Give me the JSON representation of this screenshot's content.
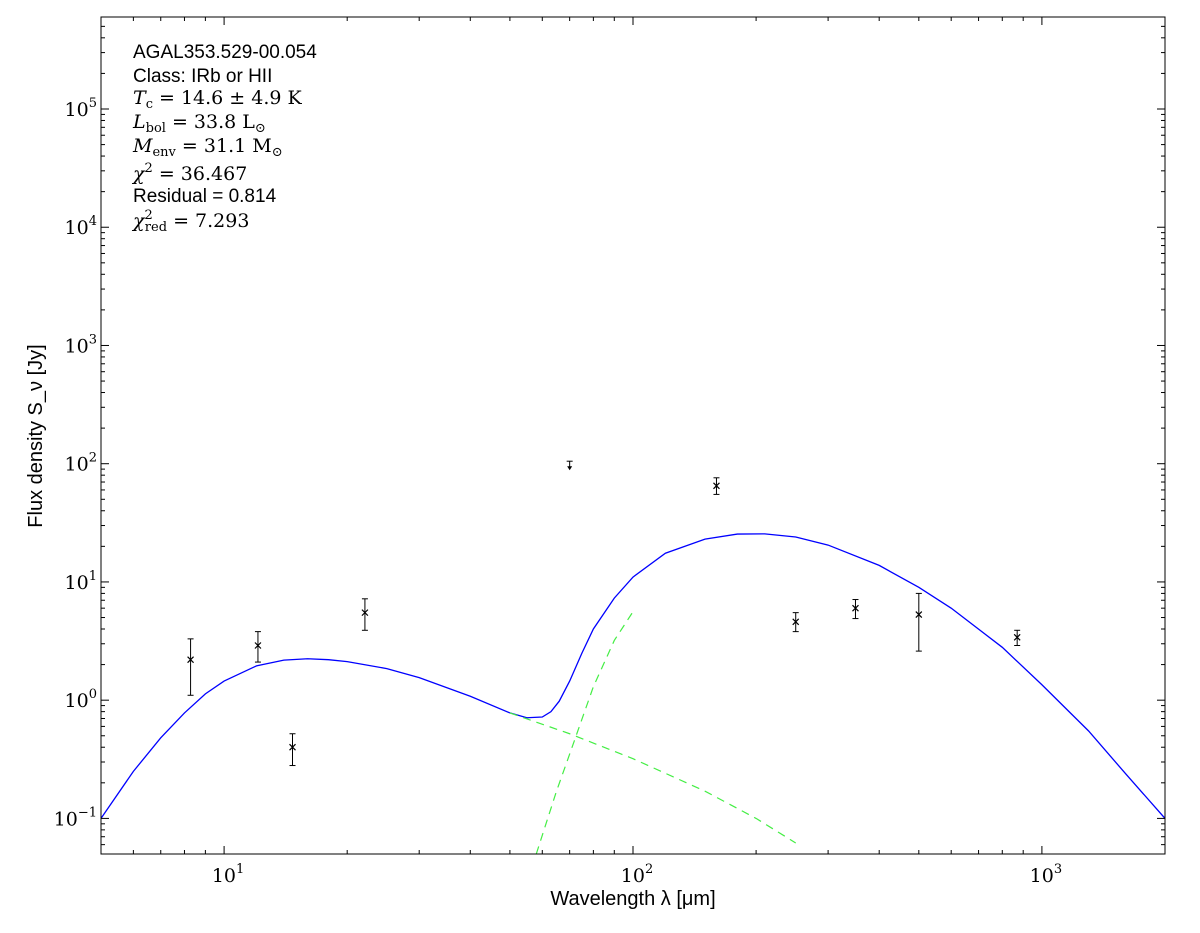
{
  "chart_data": {
    "type": "scatter",
    "title": "",
    "xlabel": "Wavelength λ [μm]",
    "ylabel": "Flux density S_ν [Jy]",
    "xscale": "log",
    "yscale": "log",
    "xlim": [
      5,
      2000
    ],
    "ylim": [
      0.05,
      600000
    ],
    "grid": false,
    "x_ticks": [
      {
        "value": 10,
        "base": "10",
        "exp": "1"
      },
      {
        "value": 100,
        "base": "10",
        "exp": "2"
      },
      {
        "value": 1000,
        "base": "10",
        "exp": "3"
      }
    ],
    "y_ticks": [
      {
        "value": 0.1,
        "base": "10",
        "exp": "−1"
      },
      {
        "value": 1,
        "base": "10",
        "exp": "0"
      },
      {
        "value": 10,
        "base": "10",
        "exp": "1"
      },
      {
        "value": 100,
        "base": "10",
        "exp": "2"
      },
      {
        "value": 1000,
        "base": "10",
        "exp": "3"
      },
      {
        "value": 10000,
        "base": "10",
        "exp": "4"
      },
      {
        "value": 100000,
        "base": "10",
        "exp": "5"
      }
    ],
    "annotations": {
      "source": "AGAL353.529-00.054",
      "class_label": "Class: IRb or HII",
      "tc": {
        "sym": "T",
        "sub": "c",
        "text": " = 14.6 ± 4.9 K"
      },
      "lbol": {
        "sym": "L",
        "sub": "bol",
        "text": " = 33.8 L",
        "sun": "⊙"
      },
      "menv": {
        "sym": "M",
        "sub": "env",
        "text": " = 31.1 M",
        "sun": "⊙"
      },
      "chi2": {
        "sym": "χ",
        "sup": "2",
        "text": " = 36.467"
      },
      "residual": "Residual = 0.814",
      "chi2red": {
        "sym": "χ",
        "sup": "2",
        "sub": "red",
        "text": " = 7.293"
      }
    },
    "measurements": [
      {
        "x": 8.28,
        "y": 2.2,
        "ylo": 1.1,
        "yhi": 3.3
      },
      {
        "x": 12.1,
        "y": 2.9,
        "ylo": 2.1,
        "yhi": 3.8
      },
      {
        "x": 14.7,
        "y": 0.4,
        "ylo": 0.28,
        "yhi": 0.52
      },
      {
        "x": 22.1,
        "y": 5.5,
        "ylo": 3.9,
        "yhi": 7.2
      },
      {
        "x": 160,
        "y": 65,
        "ylo": 55,
        "yhi": 76
      },
      {
        "x": 250,
        "y": 4.6,
        "ylo": 3.8,
        "yhi": 5.5
      },
      {
        "x": 350,
        "y": 6.0,
        "ylo": 4.9,
        "yhi": 7.1
      },
      {
        "x": 500,
        "y": 5.3,
        "ylo": 2.6,
        "yhi": 8.0
      },
      {
        "x": 870,
        "y": 3.4,
        "ylo": 2.9,
        "yhi": 3.9
      }
    ],
    "upper_limits": [
      {
        "x": 70,
        "y": 105
      }
    ],
    "series": [
      {
        "role": "total model fit",
        "color": "#0000ff",
        "style": "solid",
        "x": [
          5,
          6,
          7,
          8,
          9,
          10,
          12,
          14,
          16,
          18,
          20,
          25,
          30,
          40,
          50,
          55,
          60,
          63,
          66,
          70,
          75,
          80,
          90,
          100,
          120,
          150,
          180,
          210,
          250,
          300,
          400,
          500,
          600,
          800,
          1000,
          1300,
          1600,
          2000
        ],
        "y": [
          0.1,
          0.25,
          0.48,
          0.78,
          1.13,
          1.45,
          1.95,
          2.18,
          2.24,
          2.2,
          2.12,
          1.85,
          1.55,
          1.08,
          0.78,
          0.71,
          0.72,
          0.8,
          0.98,
          1.45,
          2.5,
          4.0,
          7.3,
          11.0,
          17.5,
          23.0,
          25.4,
          25.5,
          24.0,
          20.5,
          13.8,
          9.0,
          6.0,
          2.8,
          1.35,
          0.55,
          0.24,
          0.1
        ]
      },
      {
        "role": "warm component",
        "color": "#44ee44",
        "style": "dashed",
        "x": [
          50,
          70,
          100,
          150,
          200,
          250
        ],
        "y": [
          0.78,
          0.52,
          0.32,
          0.17,
          0.1,
          0.062
        ]
      },
      {
        "role": "cold component",
        "color": "#44ee44",
        "style": "dashed",
        "x": [
          58,
          65,
          70,
          80,
          90,
          100
        ],
        "y": [
          0.05,
          0.17,
          0.35,
          1.3,
          3.2,
          5.6
        ]
      }
    ]
  }
}
